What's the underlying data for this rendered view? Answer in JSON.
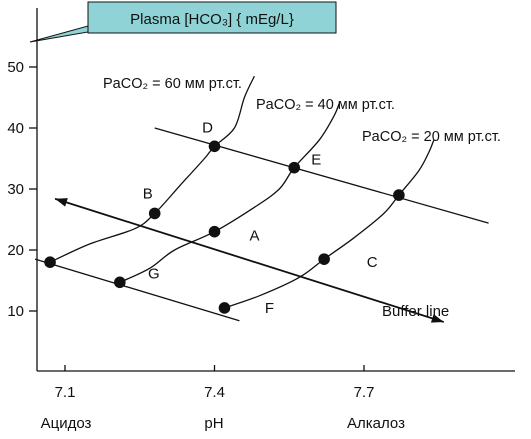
{
  "title_box": {
    "text": "Plasma [HCO₃] { mEg/L}",
    "fill": "#8fd3d6"
  },
  "chart_data": {
    "type": "diagram",
    "xlabel": "pH",
    "ylabel": "Plasma [HCO₃] { mEg/L}",
    "xlim": [
      7.03,
      7.98
    ],
    "ylim": [
      0,
      56
    ],
    "x_ticks": [
      "7.1",
      "7.4",
      "7.7"
    ],
    "x_tick_values": [
      7.1,
      7.4,
      7.7
    ],
    "y_ticks": [
      "10",
      "20",
      "30",
      "40",
      "50"
    ],
    "y_tick_values": [
      10,
      20,
      30,
      40,
      50
    ],
    "bottom_labels": {
      "left": "Ацидоз",
      "right": "Алкалоз"
    },
    "isobars": [
      {
        "label": "PaCO₂ = 60 мм рт.ст.",
        "points": [
          [
            7.07,
            18
          ],
          [
            7.15,
            21
          ],
          [
            7.24,
            23.5
          ],
          [
            7.28,
            26
          ],
          [
            7.33,
            30.5
          ],
          [
            7.38,
            35
          ],
          [
            7.4,
            37
          ],
          [
            7.44,
            40
          ],
          [
            7.46,
            45
          ],
          [
            7.48,
            48.5
          ]
        ]
      },
      {
        "label": "PaCO₂ = 40 мм рт.ст.",
        "points": [
          [
            7.21,
            14.7
          ],
          [
            7.27,
            17
          ],
          [
            7.32,
            20
          ],
          [
            7.4,
            23
          ],
          [
            7.48,
            27
          ],
          [
            7.53,
            30
          ],
          [
            7.56,
            33.5
          ],
          [
            7.61,
            38
          ],
          [
            7.64,
            42
          ],
          [
            7.65,
            44
          ]
        ]
      },
      {
        "label": "PaCO₂ = 20 мм рт.ст.",
        "points": [
          [
            7.42,
            10.5
          ],
          [
            7.49,
            12.5
          ],
          [
            7.57,
            15.5
          ],
          [
            7.62,
            18.5
          ],
          [
            7.68,
            22
          ],
          [
            7.74,
            26
          ],
          [
            7.77,
            29
          ],
          [
            7.81,
            33
          ],
          [
            7.83,
            36
          ],
          [
            7.84,
            38
          ]
        ]
      }
    ],
    "buffer_line": {
      "label": "Buffer line",
      "from": [
        7.08,
        28.4
      ],
      "to": [
        7.86,
        8.2
      ]
    },
    "parallel_lines": [
      {
        "from": [
          7.04,
          18.5
        ],
        "to": [
          7.45,
          8.4
        ]
      },
      {
        "from": [
          7.28,
          40
        ],
        "to": [
          7.95,
          24.4
        ]
      }
    ],
    "points": [
      {
        "label": "A",
        "x": 7.4,
        "y": 23
      },
      {
        "label": "B",
        "x": 7.28,
        "y": 26
      },
      {
        "label": "C",
        "x": 7.62,
        "y": 18.5
      },
      {
        "label": "D",
        "x": 7.4,
        "y": 37
      },
      {
        "label": "E",
        "x": 7.56,
        "y": 33.5
      },
      {
        "label": "F",
        "x": 7.42,
        "y": 10.5
      },
      {
        "label": "G",
        "x": 7.21,
        "y": 14.7
      },
      {
        "label": "",
        "x": 7.07,
        "y": 18
      },
      {
        "label": "",
        "x": 7.77,
        "y": 29
      }
    ]
  }
}
